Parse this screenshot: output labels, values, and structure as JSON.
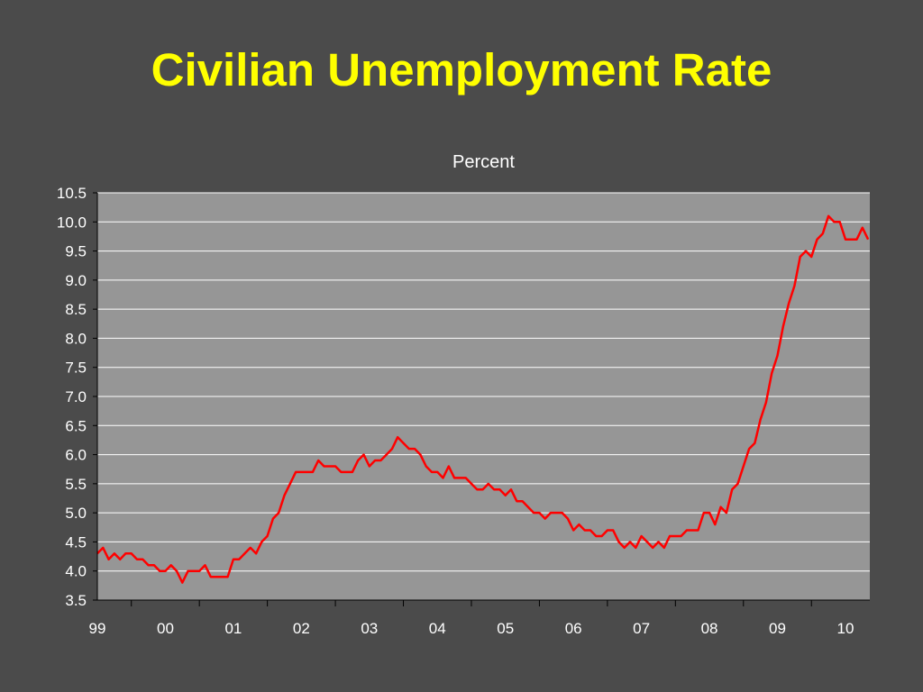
{
  "slide": {
    "title": "Civilian Unemployment Rate"
  },
  "colors": {
    "background": "#4b4b4b",
    "plot_area": "#969696",
    "gridline": "#ffffff",
    "line": "#ff0000",
    "title": "#ffff00",
    "text": "#ffffff"
  },
  "chart_data": {
    "type": "line",
    "title": "",
    "xlabel": "",
    "ylabel": "Percent",
    "ylim": [
      3.5,
      10.5
    ],
    "ytick_step": 0.5,
    "ytick_labels": [
      "3.5",
      "4.0",
      "4.5",
      "5.0",
      "5.5",
      "6.0",
      "6.5",
      "7.0",
      "7.5",
      "8.0",
      "8.5",
      "9.0",
      "9.5",
      "10.0",
      "10.5"
    ],
    "xtick_labels": [
      "99",
      "00",
      "01",
      "02",
      "03",
      "04",
      "05",
      "06",
      "07",
      "08",
      "09",
      "10"
    ],
    "grid": true,
    "legend": "none",
    "x_start": "1999-01",
    "x_end": "2010-05",
    "x_frequency": "monthly",
    "series": [
      {
        "values": [
          4.3,
          4.4,
          4.2,
          4.3,
          4.2,
          4.3,
          4.3,
          4.2,
          4.2,
          4.1,
          4.1,
          4.0,
          4.0,
          4.1,
          4.0,
          3.8,
          4.0,
          4.0,
          4.0,
          4.1,
          3.9,
          3.9,
          3.9,
          3.9,
          4.2,
          4.2,
          4.3,
          4.4,
          4.3,
          4.5,
          4.6,
          4.9,
          5.0,
          5.3,
          5.5,
          5.7,
          5.7,
          5.7,
          5.7,
          5.9,
          5.8,
          5.8,
          5.8,
          5.7,
          5.7,
          5.7,
          5.9,
          6.0,
          5.8,
          5.9,
          5.9,
          6.0,
          6.1,
          6.3,
          6.2,
          6.1,
          6.1,
          6.0,
          5.8,
          5.7,
          5.7,
          5.6,
          5.8,
          5.6,
          5.6,
          5.6,
          5.5,
          5.4,
          5.4,
          5.5,
          5.4,
          5.4,
          5.3,
          5.4,
          5.2,
          5.2,
          5.1,
          5.0,
          5.0,
          4.9,
          5.0,
          5.0,
          5.0,
          4.9,
          4.7,
          4.8,
          4.7,
          4.7,
          4.6,
          4.6,
          4.7,
          4.7,
          4.5,
          4.4,
          4.5,
          4.4,
          4.6,
          4.5,
          4.4,
          4.5,
          4.4,
          4.6,
          4.6,
          4.6,
          4.7,
          4.7,
          4.7,
          5.0,
          5.0,
          4.8,
          5.1,
          5.0,
          5.4,
          5.5,
          5.8,
          6.1,
          6.2,
          6.6,
          6.9,
          7.4,
          7.7,
          8.2,
          8.6,
          8.9,
          9.4,
          9.5,
          9.4,
          9.7,
          9.8,
          10.1,
          10.0,
          10.0,
          9.7,
          9.7,
          9.7,
          9.9,
          9.7
        ]
      }
    ]
  }
}
